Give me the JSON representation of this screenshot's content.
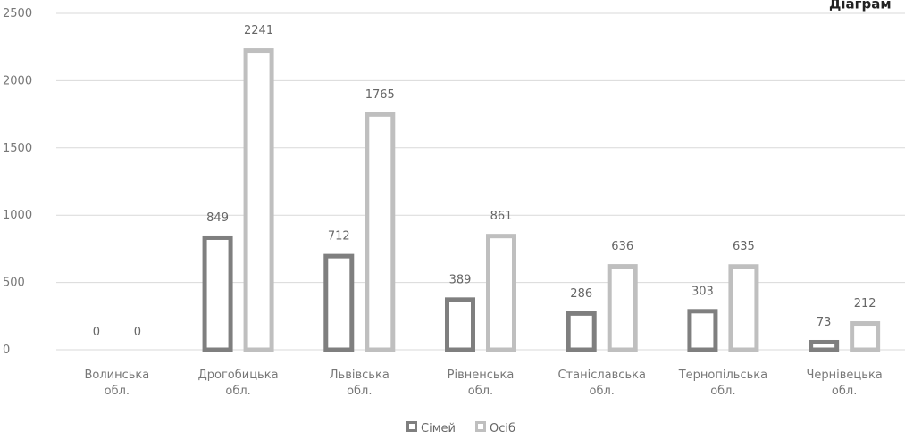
{
  "chart_data": {
    "type": "bar",
    "title": "Діаграм",
    "categories": [
      [
        "Волинська",
        "обл."
      ],
      [
        "Дрогобицька",
        "обл."
      ],
      [
        "Львівська",
        "обл."
      ],
      [
        "Рівненська",
        "обл."
      ],
      [
        "Станіславська",
        "обл."
      ],
      [
        "Тернопільська",
        "обл."
      ],
      [
        "Чернівецька",
        "обл."
      ]
    ],
    "series": [
      {
        "name": "Сімей",
        "values": [
          0,
          849,
          712,
          389,
          286,
          303,
          73
        ],
        "color": "#7f7f7f"
      },
      {
        "name": "Осіб",
        "values": [
          0,
          2241,
          1765,
          861,
          636,
          635,
          212
        ],
        "color": "#bfbfbf"
      }
    ],
    "yticks": [
      0,
      500,
      1000,
      1500,
      2000,
      2500
    ],
    "ylim": [
      0,
      2500
    ],
    "grid": true,
    "legend_position": "bottom"
  }
}
